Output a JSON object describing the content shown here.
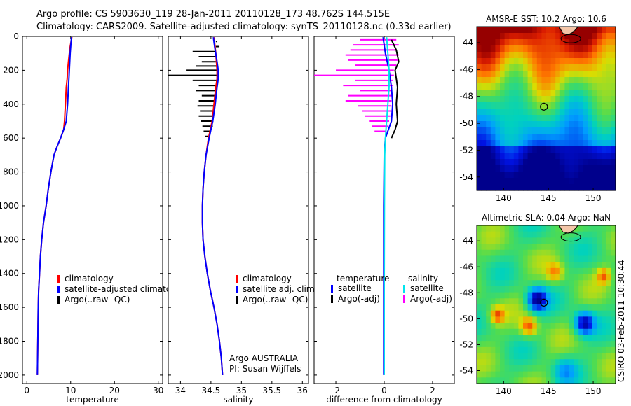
{
  "header": {
    "line1": "Argo profile: CS 5903630_119 28-Jan-2011 20110128_173 48.762S 144.515E",
    "line2": "Climatology: CARS2009. Satellite-adjusted climatology: synTS_20110128.nc (0.33d earlier)"
  },
  "colors": {
    "climatology": "#ff0000",
    "satellite_adjusted": "#0000ff",
    "argo_raw": "#000000",
    "salinity_satellite": "#00e5ee",
    "salinity_argo_adj": "#ff00ff"
  },
  "chart_data": [
    {
      "type": "line",
      "panel": "temperature",
      "xlabel": "temperature",
      "ylabel": "",
      "xlim": [
        -1,
        31
      ],
      "ylim": [
        2050,
        0
      ],
      "y_reversed": true,
      "xticks": [
        "0",
        "10",
        "20",
        "30"
      ],
      "yticks": [
        "0",
        "200",
        "400",
        "600",
        "800",
        "1000",
        "1200",
        "1400",
        "1600",
        "1800",
        "2000"
      ],
      "legend": [
        "climatology",
        "satellite-adjusted climatology",
        "Argo(..raw -QC)"
      ],
      "legend_position": "lower-center",
      "series": [
        {
          "name": "climatology",
          "color": "#ff0000",
          "points": [
            [
              10.3,
              5
            ],
            [
              10.1,
              30
            ],
            [
              9.9,
              60
            ],
            [
              9.7,
              100
            ],
            [
              9.5,
              150
            ],
            [
              9.3,
              200
            ],
            [
              9.2,
              250
            ],
            [
              9.0,
              300
            ],
            [
              8.8,
              400
            ],
            [
              8.6,
              500
            ],
            [
              8.4,
              550
            ],
            [
              7.7,
              600
            ],
            [
              6.9,
              650
            ],
            [
              6.2,
              700
            ],
            [
              5.5,
              800
            ],
            [
              4.9,
              900
            ],
            [
              4.4,
              1000
            ],
            [
              3.8,
              1100
            ],
            [
              3.4,
              1200
            ],
            [
              3.1,
              1300
            ],
            [
              2.9,
              1400
            ],
            [
              2.7,
              1500
            ],
            [
              2.6,
              1600
            ],
            [
              2.5,
              1800
            ],
            [
              2.4,
              2000
            ]
          ]
        },
        {
          "name": "satellite-adjusted climatology",
          "color": "#0000ff",
          "points": [
            [
              10.2,
              5
            ],
            [
              10.1,
              30
            ],
            [
              10.0,
              60
            ],
            [
              9.9,
              100
            ],
            [
              9.8,
              150
            ],
            [
              9.7,
              200
            ],
            [
              9.6,
              250
            ],
            [
              9.5,
              300
            ],
            [
              9.3,
              400
            ],
            [
              9.0,
              500
            ],
            [
              8.4,
              550
            ],
            [
              7.7,
              600
            ],
            [
              6.9,
              650
            ],
            [
              6.2,
              700
            ],
            [
              5.5,
              800
            ],
            [
              4.9,
              900
            ],
            [
              4.4,
              1000
            ],
            [
              3.8,
              1100
            ],
            [
              3.4,
              1200
            ],
            [
              3.1,
              1300
            ],
            [
              2.9,
              1400
            ],
            [
              2.7,
              1500
            ],
            [
              2.6,
              1600
            ],
            [
              2.5,
              1800
            ],
            [
              2.4,
              2000
            ]
          ]
        }
      ]
    },
    {
      "type": "line",
      "panel": "salinity",
      "xlabel": "salinity",
      "ylabel": "",
      "xlim": [
        33.8,
        36.1
      ],
      "ylim": [
        2050,
        0
      ],
      "y_reversed": true,
      "xticks": [
        "34",
        "34.5",
        "35",
        "35.5",
        "36"
      ],
      "legend": [
        "climatology",
        "satellite adj. clim.",
        "Argo(..raw -QC)"
      ],
      "legend_position": "lower-right",
      "annotation": [
        "Argo AUSTRALIA",
        "PI: Susan Wijffels"
      ],
      "series": [
        {
          "name": "climatology",
          "color": "#ff0000",
          "points": [
            [
              34.55,
              5
            ],
            [
              34.58,
              100
            ],
            [
              34.6,
              200
            ],
            [
              34.6,
              250
            ],
            [
              34.58,
              300
            ],
            [
              34.55,
              400
            ],
            [
              34.52,
              500
            ],
            [
              34.46,
              600
            ],
            [
              34.42,
              700
            ],
            [
              34.39,
              800
            ],
            [
              34.37,
              900
            ],
            [
              34.36,
              1000
            ],
            [
              34.36,
              1100
            ],
            [
              34.37,
              1200
            ],
            [
              34.4,
              1300
            ],
            [
              34.44,
              1400
            ],
            [
              34.49,
              1500
            ],
            [
              34.55,
              1600
            ],
            [
              34.6,
              1700
            ],
            [
              34.64,
              1800
            ],
            [
              34.67,
              1900
            ],
            [
              34.69,
              2000
            ]
          ]
        },
        {
          "name": "satellite adj. clim.",
          "color": "#0000ff",
          "points": [
            [
              34.54,
              5
            ],
            [
              34.56,
              60
            ],
            [
              34.6,
              150
            ],
            [
              34.62,
              200
            ],
            [
              34.62,
              250
            ],
            [
              34.6,
              300
            ],
            [
              34.57,
              400
            ],
            [
              34.53,
              500
            ],
            [
              34.47,
              600
            ],
            [
              34.42,
              700
            ],
            [
              34.39,
              800
            ],
            [
              34.37,
              900
            ],
            [
              34.36,
              1000
            ],
            [
              34.36,
              1100
            ],
            [
              34.37,
              1200
            ],
            [
              34.4,
              1300
            ],
            [
              34.44,
              1400
            ],
            [
              34.49,
              1500
            ],
            [
              34.55,
              1600
            ],
            [
              34.6,
              1700
            ],
            [
              34.64,
              1800
            ],
            [
              34.67,
              1900
            ],
            [
              34.69,
              2000
            ]
          ]
        }
      ],
      "argo_spikes": [
        {
          "y": 30,
          "x0": 34.58,
          "x1": 34.6
        },
        {
          "y": 60,
          "x0": 34.58,
          "x1": 34.64
        },
        {
          "y": 90,
          "x0": 34.2,
          "x1": 34.58
        },
        {
          "y": 120,
          "x0": 34.3,
          "x1": 34.58
        },
        {
          "y": 150,
          "x0": 34.35,
          "x1": 34.58
        },
        {
          "y": 175,
          "x0": 34.25,
          "x1": 34.6
        },
        {
          "y": 200,
          "x0": 34.1,
          "x1": 34.6
        },
        {
          "y": 230,
          "x0": 33.8,
          "x1": 34.6
        },
        {
          "y": 260,
          "x0": 34.2,
          "x1": 34.6
        },
        {
          "y": 290,
          "x0": 34.3,
          "x1": 34.6
        },
        {
          "y": 320,
          "x0": 34.25,
          "x1": 34.6
        },
        {
          "y": 350,
          "x0": 34.35,
          "x1": 34.58
        },
        {
          "y": 380,
          "x0": 34.3,
          "x1": 34.58
        },
        {
          "y": 410,
          "x0": 34.28,
          "x1": 34.56
        },
        {
          "y": 440,
          "x0": 34.32,
          "x1": 34.56
        },
        {
          "y": 470,
          "x0": 34.3,
          "x1": 34.55
        },
        {
          "y": 500,
          "x0": 34.34,
          "x1": 34.54
        },
        {
          "y": 530,
          "x0": 34.36,
          "x1": 34.53
        },
        {
          "y": 560,
          "x0": 34.38,
          "x1": 34.5
        },
        {
          "y": 590,
          "x0": 34.4,
          "x1": 34.48
        }
      ]
    },
    {
      "type": "line",
      "panel": "difference",
      "xlabel": "difference from climatology",
      "ylabel": "",
      "xlim": [
        -2.9,
        2.9
      ],
      "ylim": [
        2050,
        0
      ],
      "y_reversed": true,
      "xticks": [
        "-2",
        "0",
        "2"
      ],
      "legend_left_title": "temperature",
      "legend_left": [
        "satellite",
        "Argo(-adj)"
      ],
      "legend_right_title": "salinity",
      "legend_right": [
        "satellite",
        "Argo(-adj)"
      ],
      "series": [
        {
          "name": "temperature satellite",
          "color": "#0000ff",
          "points": [
            [
              -0.05,
              5
            ],
            [
              0.05,
              100
            ],
            [
              0.2,
              200
            ],
            [
              0.25,
              250
            ],
            [
              0.3,
              300
            ],
            [
              0.35,
              400
            ],
            [
              0.3,
              500
            ],
            [
              0.05,
              600
            ],
            [
              0,
              700
            ],
            [
              -0.02,
              1000
            ],
            [
              -0.02,
              1500
            ],
            [
              -0.02,
              2000
            ]
          ]
        },
        {
          "name": "salinity satellite",
          "color": "#00e5ee",
          "points": [
            [
              0.1,
              5
            ],
            [
              0.15,
              100
            ],
            [
              0.2,
              200
            ],
            [
              0.2,
              300
            ],
            [
              0.15,
              400
            ],
            [
              0.1,
              500
            ],
            [
              0.05,
              600
            ],
            [
              0.02,
              700
            ],
            [
              0.01,
              1000
            ],
            [
              0.0,
              1500
            ],
            [
              0.0,
              2000
            ]
          ]
        },
        {
          "name": "temperature Argo(-adj)",
          "color": "#000000",
          "points": [
            [
              0.3,
              20
            ],
            [
              0.5,
              80
            ],
            [
              0.6,
              150
            ],
            [
              0.45,
              200
            ],
            [
              0.55,
              300
            ],
            [
              0.5,
              400
            ],
            [
              0.55,
              500
            ],
            [
              0.45,
              550
            ],
            [
              0.3,
              600
            ]
          ]
        }
      ],
      "argo_spikes": [
        {
          "y": 20,
          "x0": -1.0,
          "x1": 0.5
        },
        {
          "y": 50,
          "x0": -1.3,
          "x1": 0.6
        },
        {
          "y": 80,
          "x0": -1.4,
          "x1": 0.5
        },
        {
          "y": 110,
          "x0": -1.6,
          "x1": 0.6
        },
        {
          "y": 140,
          "x0": -1.5,
          "x1": 0.55
        },
        {
          "y": 170,
          "x0": -1.2,
          "x1": 0.5
        },
        {
          "y": 200,
          "x0": -2.0,
          "x1": 0.4
        },
        {
          "y": 230,
          "x0": -2.9,
          "x1": 0.4
        },
        {
          "y": 260,
          "x0": -1.2,
          "x1": 0.35
        },
        {
          "y": 290,
          "x0": -1.7,
          "x1": 0.35
        },
        {
          "y": 320,
          "x0": -1.0,
          "x1": 0.3
        },
        {
          "y": 350,
          "x0": -1.5,
          "x1": 0.3
        },
        {
          "y": 380,
          "x0": -1.6,
          "x1": 0.3
        },
        {
          "y": 410,
          "x0": -1.1,
          "x1": 0.3
        },
        {
          "y": 440,
          "x0": -0.9,
          "x1": 0.3
        },
        {
          "y": 470,
          "x0": -0.8,
          "x1": 0.25
        },
        {
          "y": 500,
          "x0": -0.6,
          "x1": 0.2
        },
        {
          "y": 530,
          "x0": -0.5,
          "x1": 0.15
        },
        {
          "y": 560,
          "x0": -0.4,
          "x1": 0.1
        }
      ]
    },
    {
      "type": "heatmap",
      "panel": "sst_map",
      "title": "AMSR-E SST: 10.2 Argo: 10.6",
      "xlim": [
        137,
        152.5
      ],
      "ylim": [
        -55,
        -42.8
      ],
      "xticks": [
        "140",
        "145",
        "150"
      ],
      "yticks": [
        "-44",
        "-46",
        "-48",
        "-50",
        "-52",
        "-54"
      ],
      "marker": {
        "lon": 144.5,
        "lat": -48.76
      },
      "coastline": "Tasmania"
    },
    {
      "type": "heatmap",
      "panel": "sla_map",
      "title": "Altimetric SLA: 0.04 Argo: NaN",
      "xlim": [
        137,
        152.5
      ],
      "ylim": [
        -55,
        -42.8
      ],
      "xticks": [
        "140",
        "145",
        "150"
      ],
      "yticks": [
        "-44",
        "-46",
        "-48",
        "-50",
        "-52",
        "-54"
      ],
      "marker": {
        "lon": 144.5,
        "lat": -48.76
      },
      "coastline": "Tasmania"
    }
  ],
  "footer": {
    "stamp": "CSIRO 03-Feb-2011 10:30:44"
  }
}
